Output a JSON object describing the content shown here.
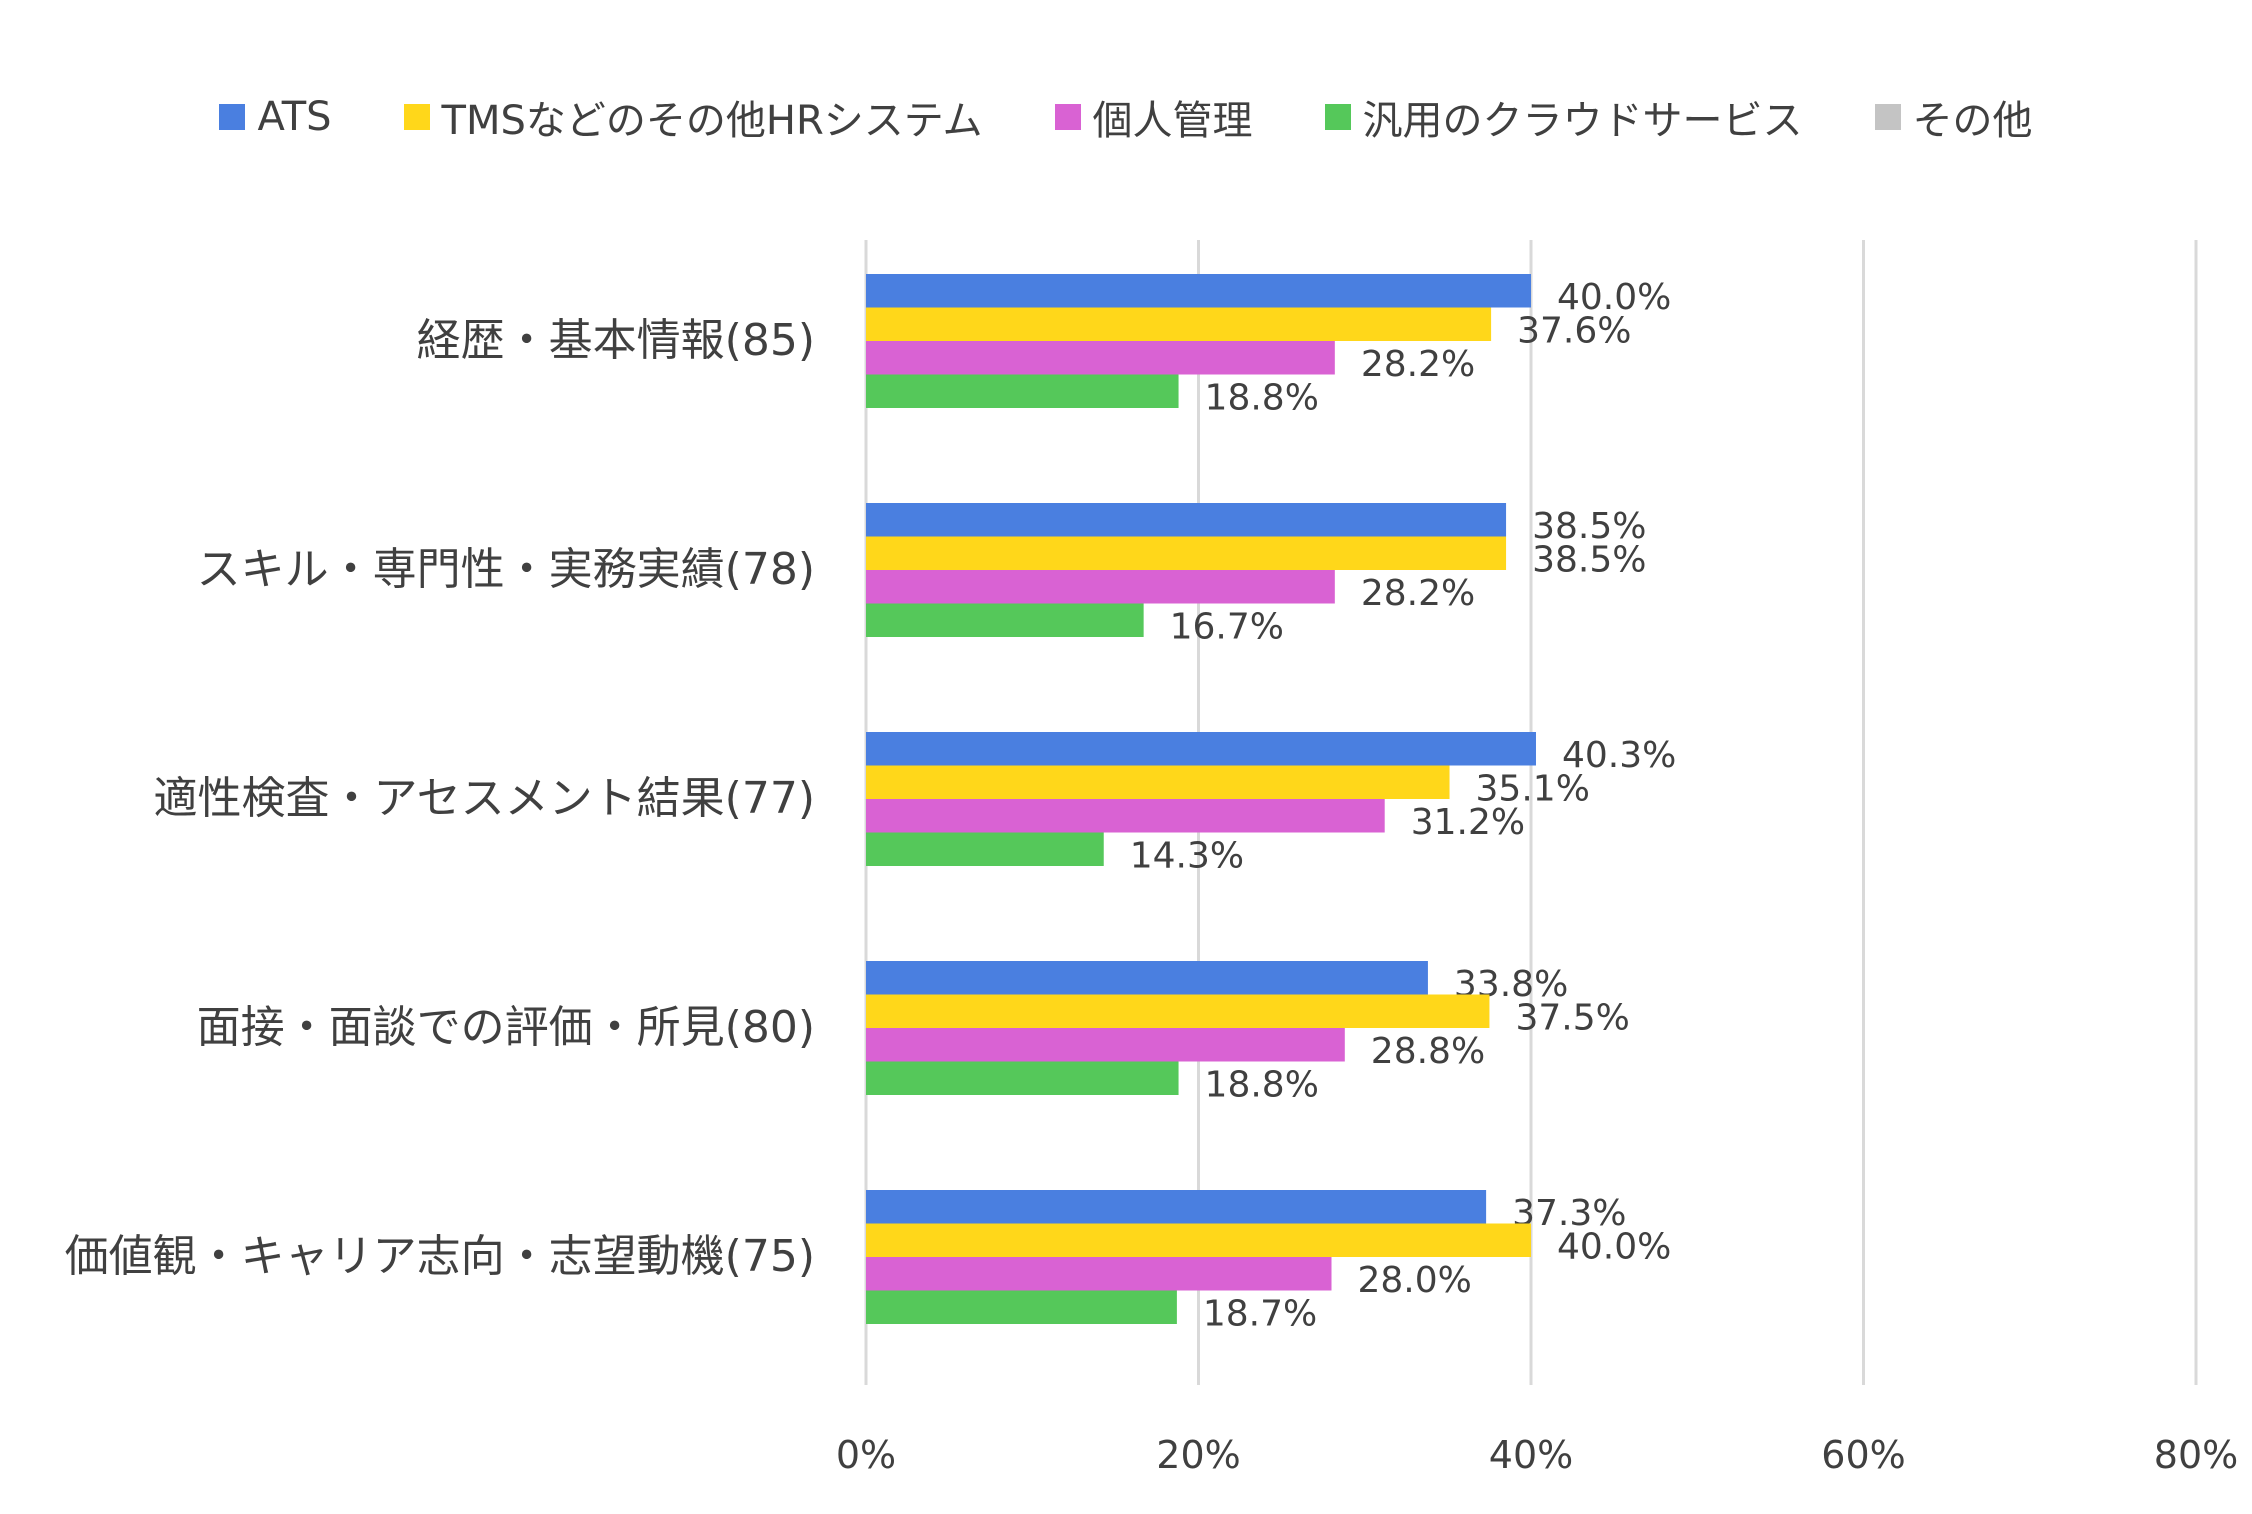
{
  "chart_data": {
    "type": "bar",
    "orientation": "horizontal",
    "title": "",
    "xlabel": "",
    "ylabel": "",
    "xlim": [
      0,
      80
    ],
    "x_ticks": [
      0,
      20,
      40,
      60,
      80
    ],
    "x_tick_labels": [
      "0%",
      "20%",
      "40%",
      "60%",
      "80%"
    ],
    "grid": "vertical",
    "legend_position": "top",
    "categories": [
      "経歴・基本情報(85)",
      "スキル・専門性・実務実績(78)",
      "適性検査・アセスメント結果(77)",
      "面接・面談での評価・所見(80)",
      "価値観・キャリア志向・志望動機(75)"
    ],
    "series": [
      {
        "name": "ATS",
        "color": "#4A7FE0",
        "values": [
          40.0,
          38.5,
          40.3,
          33.8,
          37.3
        ],
        "labels": [
          "40.0%",
          "38.5%",
          "40.3%",
          "33.8%",
          "37.3%"
        ]
      },
      {
        "name": "TMSなどのその他HRシステム",
        "color": "#FFD71A",
        "values": [
          37.6,
          38.5,
          35.1,
          37.5,
          40.0
        ],
        "labels": [
          "37.6%",
          "38.5%",
          "35.1%",
          "37.5%",
          "40.0%"
        ]
      },
      {
        "name": "個人管理",
        "color": "#D962D3",
        "values": [
          28.2,
          28.2,
          31.2,
          28.8,
          28.0
        ],
        "labels": [
          "28.2%",
          "28.2%",
          "31.2%",
          "28.8%",
          "28.0%"
        ]
      },
      {
        "name": "汎用のクラウドサービス",
        "color": "#55C85A",
        "values": [
          18.8,
          16.7,
          14.3,
          18.8,
          18.7
        ],
        "labels": [
          "18.8%",
          "16.7%",
          "14.3%",
          "18.8%",
          "18.7%"
        ]
      },
      {
        "name": "その他",
        "color": "#C4C4C4",
        "values": [
          0,
          0,
          0,
          0,
          0
        ],
        "labels": [
          "",
          "",
          "",
          "",
          ""
        ]
      }
    ]
  }
}
